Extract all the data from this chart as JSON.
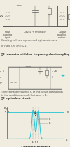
{
  "bg_color": "#f0ece0",
  "line_color": "#555555",
  "cyan_color": "#22c4d4",
  "dark_color": "#222222",
  "text_color": "#444444",
  "f0": 0.5,
  "f1": 0.455,
  "f2": 0.545,
  "sigma": 0.022,
  "flat_level": 0.93,
  "graph_xlim": [
    0.0,
    1.0
  ],
  "graph_ylim": [
    0.0,
    1.1
  ],
  "fs_label": 2.4,
  "fs_section": 2.6,
  "fs_ann": 2.5
}
